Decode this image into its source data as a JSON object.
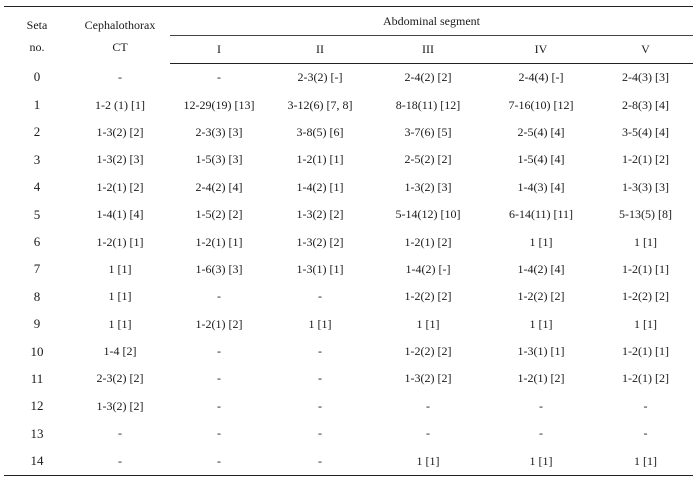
{
  "header": {
    "seta_line1": "Seta",
    "seta_line2": "no.",
    "ceph_line1": "Cephalothorax",
    "ceph_line2": "CT",
    "group_label": "Abdominal segment",
    "segments": [
      "I",
      "II",
      "III",
      "IV",
      "V"
    ]
  },
  "rows": [
    {
      "seta": "0",
      "ct": "-",
      "I": "-",
      "II": "2-3(2) [-]",
      "III": "2-4(2) [2]",
      "IV": "2-4(4) [-]",
      "V": "2-4(3) [3]"
    },
    {
      "seta": "1",
      "ct": "1-2 (1) [1]",
      "I": "12-29(19) [13]",
      "II": "3-12(6) [7, 8]",
      "III": "8-18(11) [12]",
      "IV": "7-16(10) [12]",
      "V": "2-8(3) [4]"
    },
    {
      "seta": "2",
      "ct": "1-3(2) [2]",
      "I": "2-3(3) [3]",
      "II": "3-8(5) [6]",
      "III": "3-7(6) [5]",
      "IV": "2-5(4) [4]",
      "V": "3-5(4) [4]"
    },
    {
      "seta": "3",
      "ct": "1-3(2) [3]",
      "I": "1-5(3) [3]",
      "II": "1-2(1) [1]",
      "III": "2-5(2) [2]",
      "IV": "1-5(4) [4]",
      "V": "1-2(1) [2]"
    },
    {
      "seta": "4",
      "ct": "1-2(1) [2]",
      "I": "2-4(2) [4]",
      "II": "1-4(2) [1]",
      "III": "1-3(2) [3]",
      "IV": "1-4(3) [4]",
      "V": "1-3(3) [3]"
    },
    {
      "seta": "5",
      "ct": "1-4(1) [4]",
      "I": "1-5(2) [2]",
      "II": "1-3(2) [2]",
      "III": "5-14(12) [10]",
      "IV": "6-14(11) [11]",
      "V": "5-13(5) [8]"
    },
    {
      "seta": "6",
      "ct": "1-2(1) [1]",
      "I": "1-2(1) [1]",
      "II": "1-3(2) [2]",
      "III": "1-2(1) [2]",
      "IV": "1 [1]",
      "V": "1 [1]"
    },
    {
      "seta": "7",
      "ct": "1 [1]",
      "I": "1-6(3) [3]",
      "II": "1-3(1) [1]",
      "III": "1-4(2) [-]",
      "IV": "1-4(2) [4]",
      "V": "1-2(1) [1]"
    },
    {
      "seta": "8",
      "ct": "1 [1]",
      "I": "-",
      "II": "-",
      "III": "1-2(2) [2]",
      "IV": "1-2(2) [2]",
      "V": "1-2(2) [2]"
    },
    {
      "seta": "9",
      "ct": "1 [1]",
      "I": "1-2(1) [2]",
      "II": "1 [1]",
      "III": "1 [1]",
      "IV": "1 [1]",
      "V": "1 [1]"
    },
    {
      "seta": "10",
      "ct": "1-4  [2]",
      "I": "-",
      "II": "-",
      "III": "1-2(2) [2]",
      "IV": "1-3(1) [1]",
      "V": "1-2(1) [1]"
    },
    {
      "seta": "11",
      "ct": "2-3(2) [2]",
      "I": "-",
      "II": "-",
      "III": "1-3(2) [2]",
      "IV": "1-2(1) [2]",
      "V": "1-2(1) [2]"
    },
    {
      "seta": "12",
      "ct": "1-3(2) [2]",
      "I": "-",
      "II": "-",
      "III": "-",
      "IV": "-",
      "V": "-"
    },
    {
      "seta": "13",
      "ct": "-",
      "I": "-",
      "II": "-",
      "III": "-",
      "IV": "-",
      "V": "-"
    },
    {
      "seta": "14",
      "ct": "-",
      "I": "-",
      "II": "-",
      "III": "1 [1]",
      "IV": "1 [1]",
      "V": "1 [1]"
    }
  ]
}
